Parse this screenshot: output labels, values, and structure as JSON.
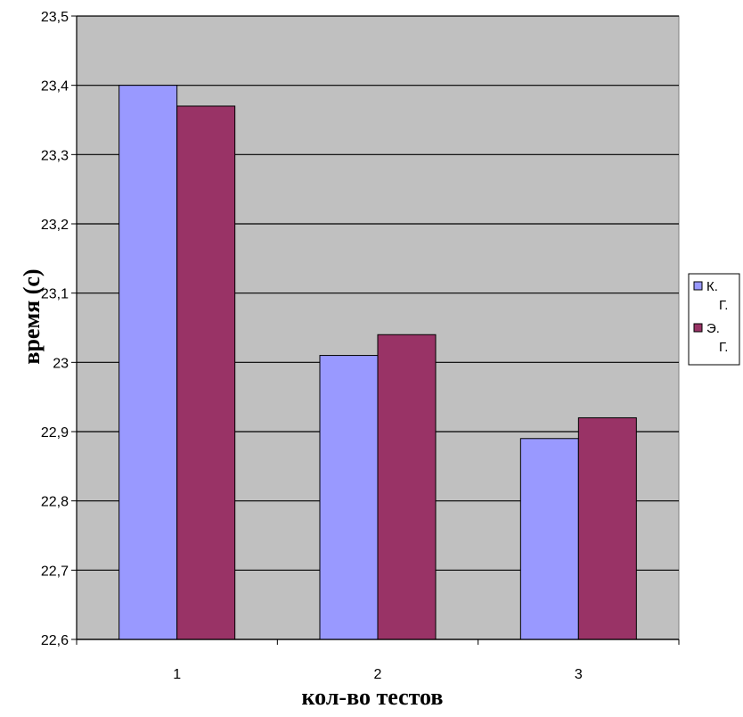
{
  "chart_data": {
    "type": "bar",
    "categories": [
      "1",
      "2",
      "3"
    ],
    "series": [
      {
        "name": "К. Г.",
        "values": [
          23.4,
          23.01,
          22.89
        ],
        "color": "#9999ff"
      },
      {
        "name": "Э. Г.",
        "values": [
          23.37,
          23.04,
          22.92
        ],
        "color": "#993366"
      }
    ],
    "xlabel": "кол-во тестов",
    "ylabel": "время (с)",
    "ylim": [
      22.6,
      23.5
    ],
    "yticks": [
      "22,6",
      "22,7",
      "22,8",
      "22,9",
      "23",
      "23,1",
      "23,2",
      "23,3",
      "23,4",
      "23,5"
    ],
    "grid": true,
    "plot_background": "#c0c0c0",
    "legend_position": "right"
  }
}
